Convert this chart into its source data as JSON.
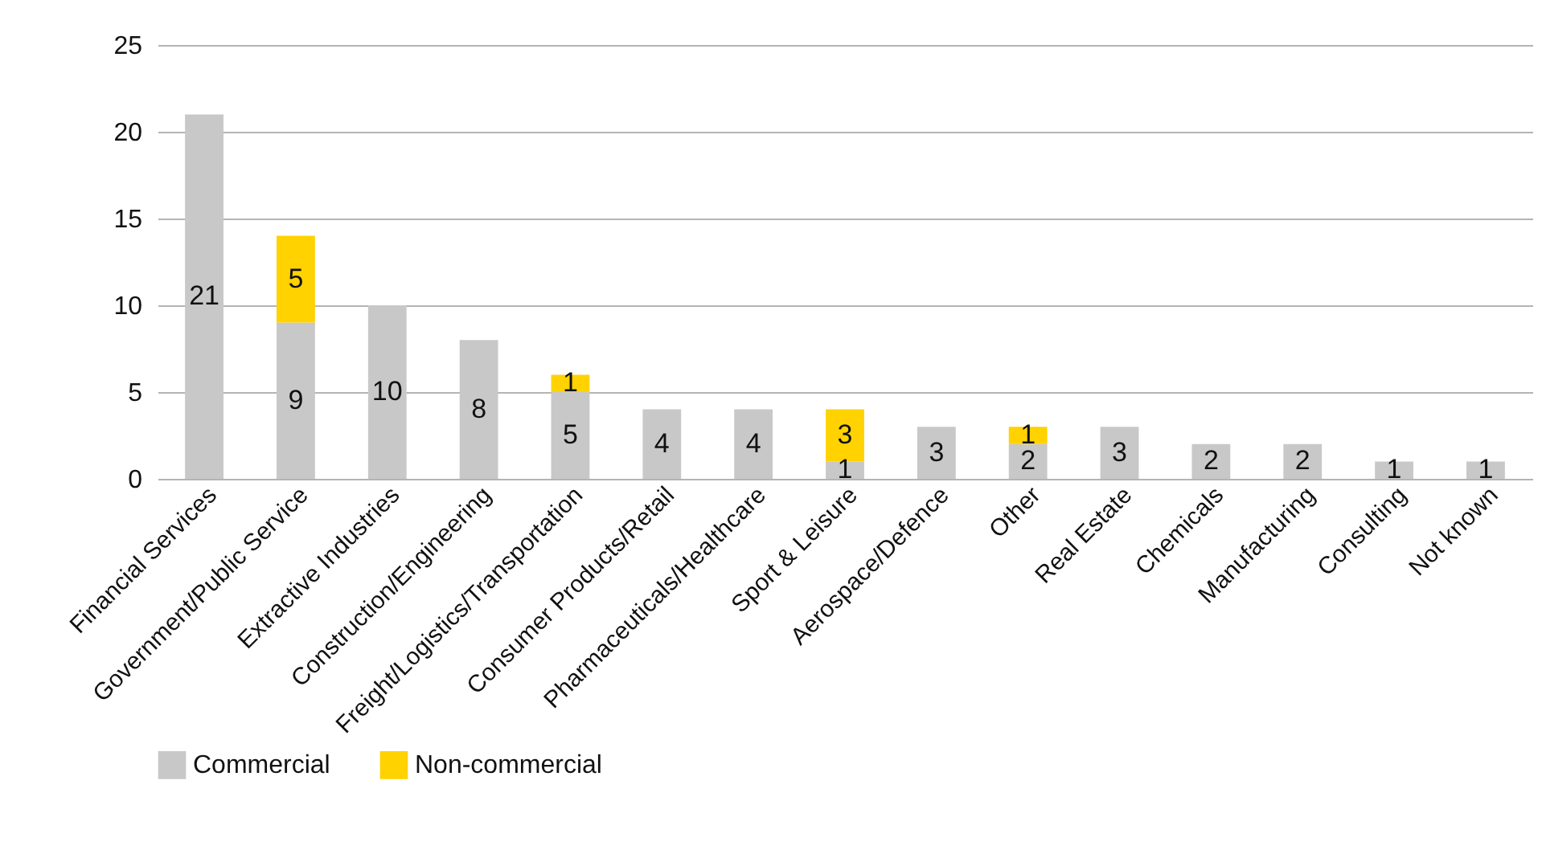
{
  "chart_data": {
    "type": "bar",
    "stacked": true,
    "categories": [
      "Financial Services",
      "Government/Public Service",
      "Extractive Industries",
      "Construction/Engineering",
      "Freight/Logistics/Transportation",
      "Consumer Products/Retail",
      "Pharmaceuticals/Healthcare",
      "Sport & Leisure",
      "Aerospace/Defence",
      "Other",
      "Real Estate",
      "Chemicals",
      "Manufacturing",
      "Consulting",
      "Not known"
    ],
    "series": [
      {
        "name": "Commercial",
        "color": "#c8c8c8",
        "values": [
          21,
          9,
          10,
          8,
          5,
          4,
          4,
          1,
          3,
          2,
          3,
          2,
          2,
          1,
          1
        ]
      },
      {
        "name": "Non-commercial",
        "color": "#ffd200",
        "values": [
          null,
          5,
          null,
          null,
          1,
          null,
          null,
          3,
          null,
          1,
          null,
          null,
          null,
          null,
          null
        ]
      }
    ],
    "ylim": [
      0,
      25
    ],
    "yticks": [
      0,
      5,
      10,
      15,
      20,
      25
    ],
    "grid": "y",
    "legend": "bottom",
    "data_labels": true
  }
}
